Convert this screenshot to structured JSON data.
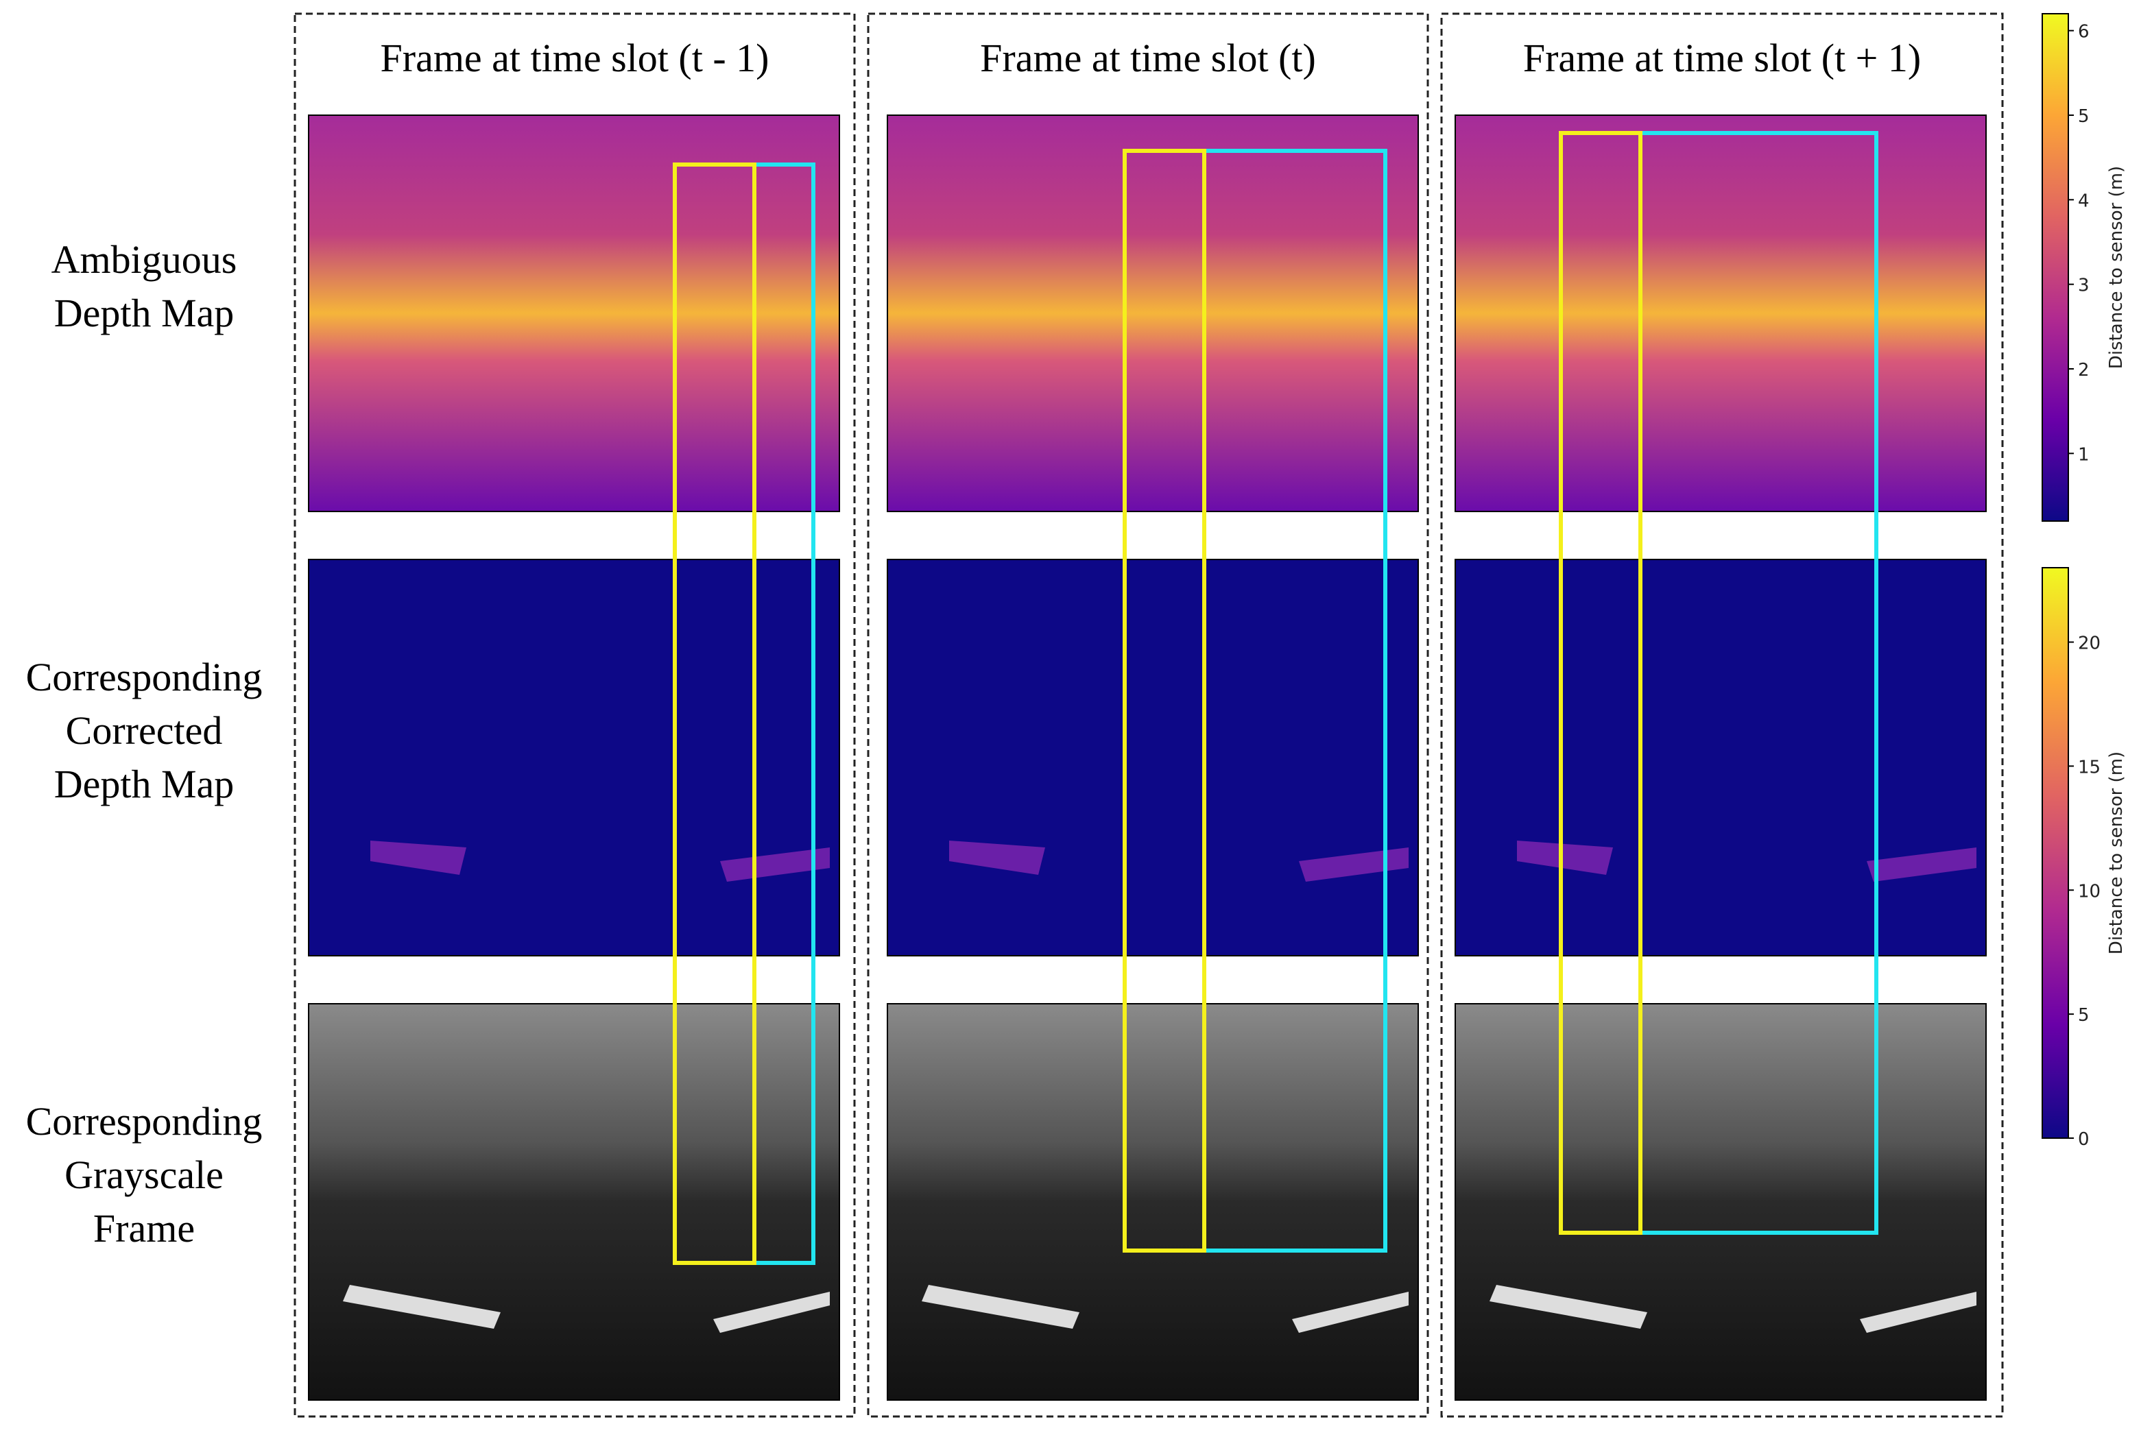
{
  "columns": [
    "Frame at time slot (t - 1)",
    "Frame at time slot (t)",
    "Frame at time slot (t + 1)"
  ],
  "rows": [
    [
      "Ambiguous",
      "Depth Map"
    ],
    [
      "Corresponding",
      "Corrected",
      "Depth Map"
    ],
    [
      "Corresponding",
      "Grayscale",
      "Frame"
    ]
  ],
  "colorbars": [
    {
      "label": "Distance to sensor (m)",
      "lim": [
        0.2,
        6.2
      ],
      "ticks": [
        1,
        2,
        3,
        4,
        5,
        6
      ]
    },
    {
      "label": "Distance to sensor (m)",
      "lim": [
        0,
        23
      ],
      "ticks": [
        0,
        5,
        10,
        15,
        20
      ]
    }
  ]
}
